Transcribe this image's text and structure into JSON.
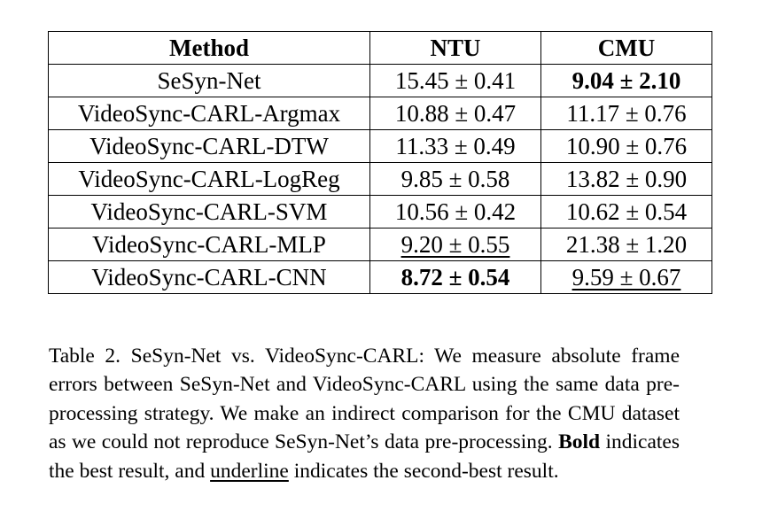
{
  "table": {
    "headers": [
      "Method",
      "NTU",
      "CMU"
    ],
    "rows": [
      {
        "method": "SeSyn-Net",
        "ntu": "15.45 ± 0.41",
        "ntu_style": "",
        "cmu": "9.04 ± 2.10",
        "cmu_style": "bold"
      },
      {
        "method": "VideoSync-CARL-Argmax",
        "ntu": "10.88 ± 0.47",
        "ntu_style": "",
        "cmu": "11.17 ± 0.76",
        "cmu_style": ""
      },
      {
        "method": "VideoSync-CARL-DTW",
        "ntu": "11.33 ± 0.49",
        "ntu_style": "",
        "cmu": "10.90 ± 0.76",
        "cmu_style": ""
      },
      {
        "method": "VideoSync-CARL-LogReg",
        "ntu": "9.85 ± 0.58",
        "ntu_style": "",
        "cmu": "13.82 ± 0.90",
        "cmu_style": ""
      },
      {
        "method": "VideoSync-CARL-SVM",
        "ntu": "10.56 ± 0.42",
        "ntu_style": "",
        "cmu": "10.62 ± 0.54",
        "cmu_style": ""
      },
      {
        "method": "VideoSync-CARL-MLP",
        "ntu": "9.20 ± 0.55",
        "ntu_style": "underline",
        "cmu": "21.38 ± 1.20",
        "cmu_style": ""
      },
      {
        "method": "VideoSync-CARL-CNN",
        "ntu": "8.72 ± 0.54",
        "ntu_style": "bold",
        "cmu": "9.59 ± 0.67",
        "cmu_style": "underline"
      }
    ]
  },
  "caption": {
    "label": "Table 2.",
    "text_1": " SeSyn-Net vs. VideoSync-CARL: We measure absolute frame errors between SeSyn-Net and VideoSync-CARL using the same data pre-processing strategy. We make an indirect comparison for the CMU dataset as we could not reproduce SeSyn-Net’s data pre-processing. ",
    "bold_word": "Bold",
    "text_2": " indicates the best result, and ",
    "underline_word": "underline",
    "text_3": " indicates the second-best result."
  }
}
